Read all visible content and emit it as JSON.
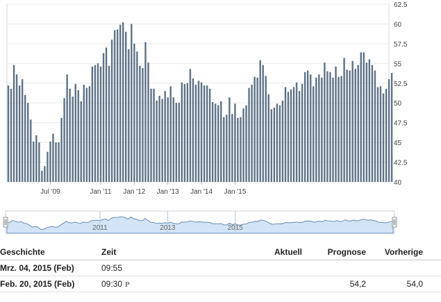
{
  "chart_data": {
    "type": "bar",
    "x_start": "2008-04",
    "y_ticks": [
      "40",
      "42.5",
      "45",
      "47.5",
      "50",
      "52.5",
      "55",
      "57.5",
      "60",
      "62.5"
    ],
    "ylim": [
      40,
      62.5
    ],
    "x_ticks": [
      {
        "label": "Jul '09",
        "date": "2009-07"
      },
      {
        "label": "Jan '11",
        "date": "2011-01"
      },
      {
        "label": "Jan '12",
        "date": "2012-01"
      },
      {
        "label": "Jan '13",
        "date": "2013-01"
      },
      {
        "label": "Jan '14",
        "date": "2014-01"
      },
      {
        "label": "Jan '15",
        "date": "2015-01"
      }
    ],
    "values": [
      52.2,
      51.8,
      54.8,
      53.6,
      52.2,
      53.0,
      51.0,
      50.0,
      47.9,
      45.1,
      45.9,
      45.0,
      41.4,
      42.0,
      43.8,
      45.1,
      46.1,
      45.0,
      45.0,
      48.1,
      50.6,
      53.6,
      51.8,
      50.8,
      52.4,
      51.6,
      50.2,
      52.3,
      51.9,
      52.1,
      54.6,
      54.8,
      55.0,
      54.6,
      56.3,
      57.0,
      54.7,
      58.0,
      59.2,
      59.3,
      59.9,
      60.2,
      59.0,
      56.8,
      60.0,
      57.5,
      56.5,
      54.7,
      54.4,
      57.7,
      55.1,
      51.8,
      51.8,
      50.3,
      50.9,
      50.5,
      51.5,
      50.7,
      52.1,
      50.7,
      50.0,
      50.0,
      52.6,
      52.4,
      52.5,
      54.3,
      53.1,
      52.3,
      52.8,
      52.6,
      52.2,
      52.2,
      51.8,
      50.1,
      49.9,
      49.7,
      50.2,
      48.2,
      48.5,
      50.7,
      48.6,
      49.9,
      48.1,
      48.2,
      49.3,
      49.7,
      51.9,
      52.3,
      53.3,
      53.2,
      55.4,
      54.8,
      53.4,
      51.1,
      49.2,
      49.4,
      49.9,
      49.7,
      50.3,
      52.0,
      51.4,
      51.7,
      52.0,
      52.6,
      51.5,
      52.4,
      53.9,
      54.1,
      53.6,
      52.1,
      53.2,
      53.6,
      53.2,
      55.1,
      54.0,
      53.9,
      53.2,
      54.6,
      53.3,
      53.4,
      55.7,
      54.2,
      54.1,
      55.3,
      54.3,
      54.8,
      56.4,
      56.4,
      55.1,
      55.5,
      54.8,
      54.1,
      52.0,
      52.1,
      51.2,
      51.8,
      53.0,
      53.8
    ],
    "navigator_labels": [
      "2011",
      "2013",
      "2015"
    ]
  },
  "history": {
    "headers": {
      "name": "Geschichte",
      "time": "Zeit",
      "actual": "Aktuell",
      "forecast": "Prognose",
      "previous": "Vorherige"
    },
    "rows": [
      {
        "name": "Mrz. 04, 2015 (Feb)",
        "time": "09:55",
        "marker": "",
        "actual": "",
        "forecast": "",
        "previous": ""
      },
      {
        "name": "Feb. 20, 2015 (Feb)",
        "time": "09:30",
        "marker": "P",
        "actual": "",
        "forecast": "54,2",
        "previous": "54,0"
      }
    ]
  },
  "colors": {
    "bar": "#5d7286",
    "navigator_fill": "#d2e4f6",
    "navigator_line": "#6a8db5"
  }
}
